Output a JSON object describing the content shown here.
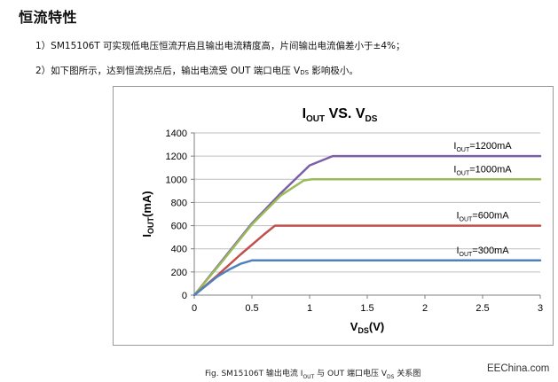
{
  "heading": "恒流特性",
  "paragraphs": {
    "p1": "1）SM15106T 可实现低电压恒流开启且输出电流精度高，片间输出电流偏差小于±4%；",
    "p2_before": "2）如下图所示，达到恒流拐点后，输出电流受 OUT 端口电压 V",
    "p2_sub": "DS",
    "p2_after": " 影响极小。"
  },
  "caption": {
    "before": "Fig. SM15106T 输出电流 I",
    "sub1": "OUT",
    "middle": " 与 OUT 端口电压 V",
    "sub2": "DS",
    "after": " 关系图"
  },
  "brand": "EEChina.com",
  "chart_data": {
    "type": "line",
    "title_main": "I",
    "title_sub1": "OUT",
    "title_mid": " VS. V",
    "title_sub2": "DS",
    "xlabel_main": "V",
    "xlabel_sub": "DS",
    "xlabel_unit": "(V)",
    "ylabel_main": "I",
    "ylabel_sub": "OUT",
    "ylabel_unit": "(mA)",
    "xlim": [
      0,
      3
    ],
    "ylim": [
      0,
      1400
    ],
    "xticks": [
      "0",
      "0.5",
      "1",
      "1.5",
      "2",
      "2.5",
      "3"
    ],
    "yticks": [
      "0",
      "200",
      "400",
      "600",
      "800",
      "1000",
      "1200",
      "1400"
    ],
    "grid": "horizontal",
    "series": [
      {
        "name_main": "I",
        "name_sub": "OUT",
        "name_value": "=1200mA",
        "color": "#7b5ea7",
        "x": [
          0,
          0.25,
          0.5,
          0.75,
          1.0,
          1.2,
          1.25,
          3.0
        ],
        "y": [
          0,
          310,
          620,
          880,
          1120,
          1200,
          1200,
          1200
        ]
      },
      {
        "name_main": "I",
        "name_sub": "OUT",
        "name_value": "=1000mA",
        "color": "#9bbb59",
        "x": [
          0,
          0.25,
          0.5,
          0.75,
          0.95,
          1.02,
          3.0
        ],
        "y": [
          0,
          300,
          610,
          860,
          990,
          1000,
          1000
        ]
      },
      {
        "name_main": "I",
        "name_sub": "OUT",
        "name_value": "=600mA",
        "color": "#c0504d",
        "x": [
          0,
          0.2,
          0.4,
          0.6,
          0.7,
          0.75,
          3.0
        ],
        "y": [
          0,
          170,
          350,
          520,
          600,
          600,
          600
        ]
      },
      {
        "name_main": "I",
        "name_sub": "OUT",
        "name_value": "=300mA",
        "color": "#4f81bd",
        "x": [
          0,
          0.1,
          0.2,
          0.3,
          0.4,
          0.5,
          0.52,
          3.0
        ],
        "y": [
          0,
          80,
          160,
          220,
          270,
          300,
          300,
          300
        ]
      }
    ]
  }
}
